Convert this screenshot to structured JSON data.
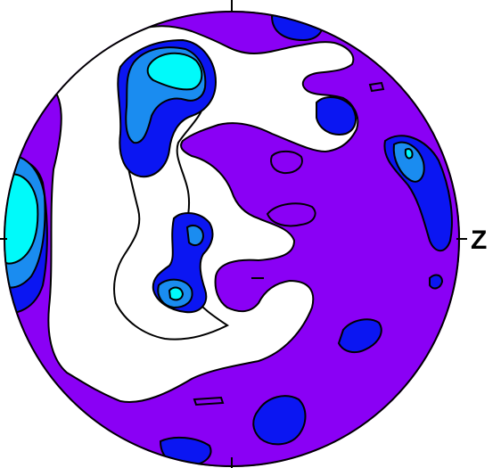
{
  "north_label": "Z",
  "colors": {
    "level_1": "#8a00f5",
    "level_2": "#0b16f2",
    "level_3": "#1a8cf0",
    "level_4": "#00fafa",
    "outline": "#000000",
    "background": "#ffffff"
  }
}
